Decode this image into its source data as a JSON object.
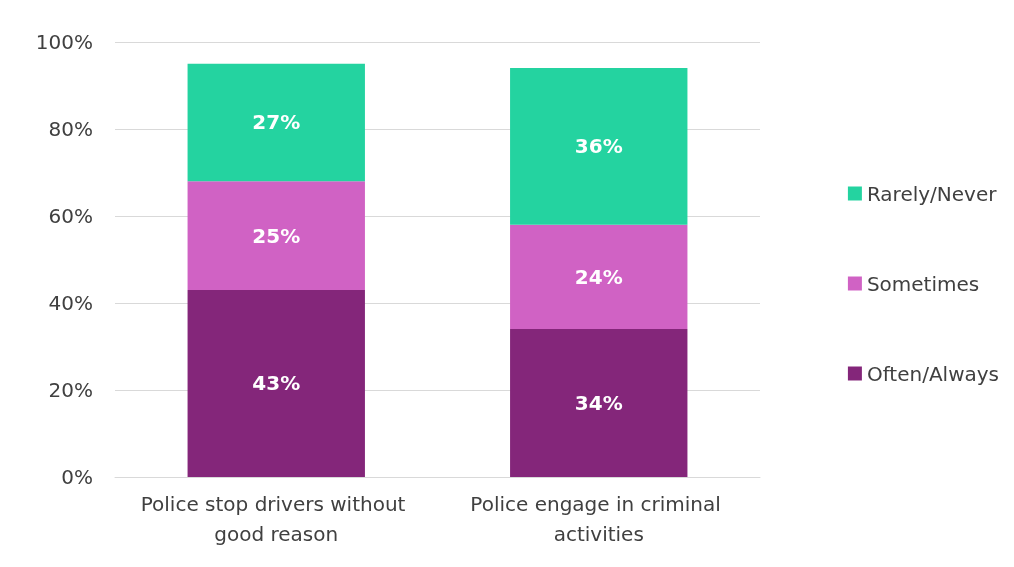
{
  "chart_data": {
    "type": "bar",
    "stacked": true,
    "categories": [
      "Police stop drivers without good reason",
      "Police engage in criminal activities"
    ],
    "series": [
      {
        "name": "Often/Always",
        "color": "#84267a",
        "values": [
          43,
          34
        ],
        "value_labels": [
          "43%",
          "34%"
        ]
      },
      {
        "name": "Sometimes",
        "color": "#d062c4",
        "values": [
          25,
          24
        ],
        "value_labels": [
          "25%",
          "24%"
        ]
      },
      {
        "name": "Rarely/Never",
        "color": "#24d3a0",
        "values": [
          27,
          36
        ],
        "value_labels": [
          "27%",
          "36%"
        ]
      }
    ],
    "ylim": [
      0,
      100
    ],
    "yticks": [
      {
        "value": 0,
        "label": "0%"
      },
      {
        "value": 20,
        "label": "20%"
      },
      {
        "value": 40,
        "label": "40%"
      },
      {
        "value": 60,
        "label": "60%"
      },
      {
        "value": 80,
        "label": "80%"
      },
      {
        "value": 100,
        "label": "100%"
      }
    ],
    "grid": "y",
    "legend": "right"
  }
}
